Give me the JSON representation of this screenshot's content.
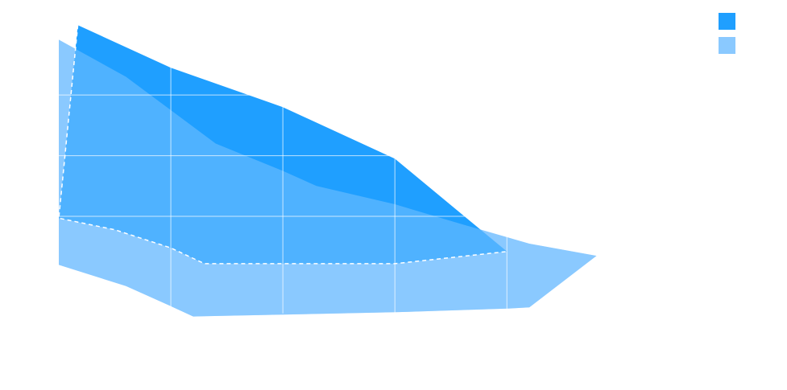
{
  "chart_data": {
    "type": "area",
    "title": "",
    "xlabel": "",
    "ylabel": "",
    "grid": true,
    "legend_position": "top-right",
    "x_gridlines": [
      1,
      2,
      3,
      4
    ],
    "y_gridlines": [
      1,
      2,
      3
    ],
    "series": [
      {
        "color": "#1f9fff",
        "opacity": 1.0,
        "upper": [
          [
            0.17,
            4.15
          ],
          [
            1,
            3.45
          ],
          [
            2,
            2.8
          ],
          [
            3,
            1.95
          ],
          [
            4,
            0.42
          ]
        ],
        "lower": [
          [
            0,
            0.97
          ],
          [
            0.5,
            0.78
          ],
          [
            1,
            0.48
          ],
          [
            1.3,
            0.22
          ],
          [
            2,
            0.22
          ],
          [
            3,
            0.22
          ],
          [
            4,
            0.42
          ]
        ]
      },
      {
        "color": "#8ac9ff",
        "opacity": 1.0,
        "upper": [
          [
            0,
            3.91
          ],
          [
            0.6,
            3.3
          ],
          [
            1,
            2.75
          ],
          [
            1.4,
            2.2
          ],
          [
            2,
            1.75
          ],
          [
            2.3,
            1.5
          ],
          [
            3,
            1.2
          ],
          [
            3.6,
            0.87
          ],
          [
            4.2,
            0.55
          ],
          [
            4.8,
            0.35
          ]
        ],
        "lower": [
          [
            0,
            0.2
          ],
          [
            0.6,
            -0.15
          ],
          [
            1,
            -0.48
          ],
          [
            1.2,
            -0.65
          ],
          [
            2,
            -0.62
          ],
          [
            3,
            -0.58
          ],
          [
            4,
            -0.52
          ],
          [
            4.2,
            -0.5
          ],
          [
            4.8,
            0.35
          ]
        ]
      }
    ],
    "boundary_series_index": 0,
    "xlim": [
      0,
      6.22
    ],
    "ylim": [
      -1.0,
      4.3
    ]
  }
}
